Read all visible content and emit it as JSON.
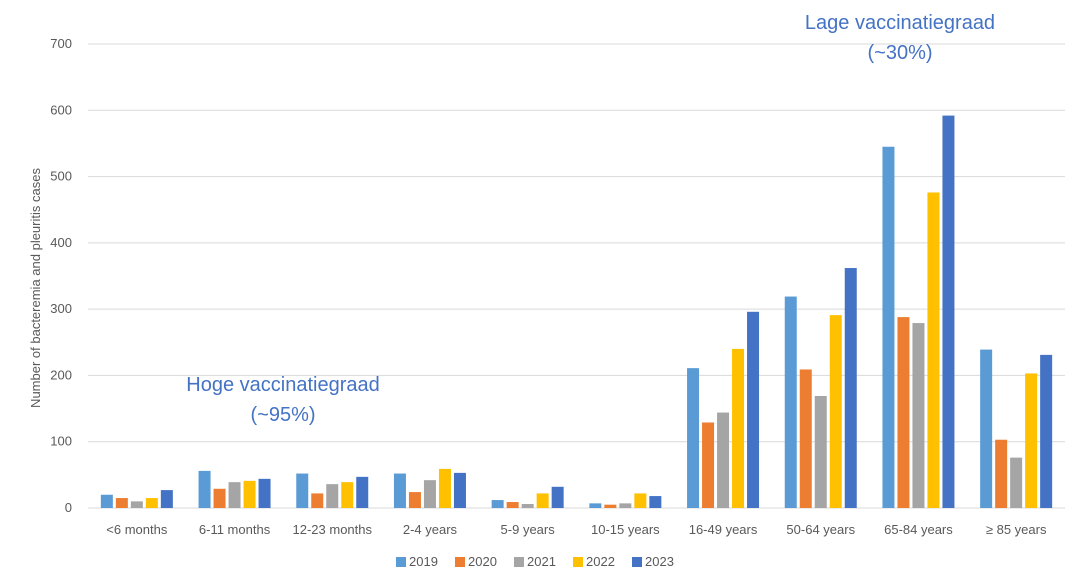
{
  "chart_data": {
    "type": "bar",
    "ylabel": "Number of  bacteremia and pleuritis cases",
    "xlabel": "",
    "ylim": [
      0,
      700
    ],
    "yticks": [
      0,
      100,
      200,
      300,
      400,
      500,
      600,
      700
    ],
    "grid": true,
    "legend_position": "bottom",
    "categories": [
      "<6 months",
      "6-11 months",
      "12-23 months",
      "2-4 years",
      "5-9 years",
      "10-15 years",
      "16-49 years",
      "50-64 years",
      "65-84 years",
      "≥ 85 years"
    ],
    "series": [
      {
        "name": "2019",
        "color": "#5b9bd5",
        "values": [
          20,
          56,
          52,
          52,
          12,
          7,
          211,
          319,
          545,
          239
        ]
      },
      {
        "name": "2020",
        "color": "#ed7d31",
        "values": [
          15,
          29,
          22,
          24,
          9,
          5,
          129,
          209,
          288,
          103
        ]
      },
      {
        "name": "2021",
        "color": "#a5a5a5",
        "values": [
          10,
          39,
          36,
          42,
          6,
          7,
          144,
          169,
          279,
          76
        ]
      },
      {
        "name": "2022",
        "color": "#ffc000",
        "values": [
          15,
          41,
          39,
          59,
          22,
          22,
          240,
          291,
          476,
          203
        ]
      },
      {
        "name": "2023",
        "color": "#4472c4",
        "values": [
          27,
          44,
          47,
          53,
          32,
          18,
          296,
          362,
          592,
          231
        ]
      }
    ],
    "annotations": [
      {
        "lines": [
          "Hoge vaccinatiegraad",
          "(~95%)"
        ],
        "anchor": "6-11 months"
      },
      {
        "lines": [
          "Lage vaccinatiegraad",
          "(~30%)"
        ],
        "anchor": "50-64 years"
      }
    ]
  }
}
